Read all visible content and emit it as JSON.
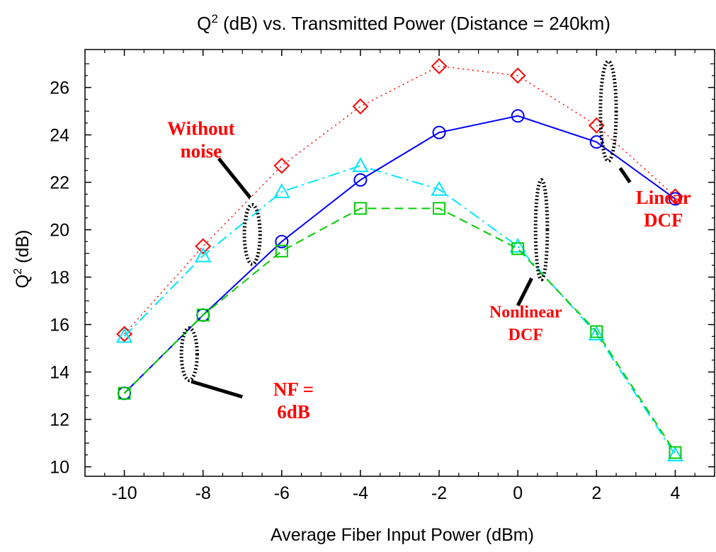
{
  "chart_data": {
    "type": "line",
    "title": {
      "prefix": "Q",
      "sup": "2",
      "rest": " (dB) vs. Transmitted Power (Distance = 240km)"
    },
    "xlabel": "Average Fiber Input Power (dBm)",
    "ylabel": {
      "prefix": "Q",
      "sup": "2",
      "rest": " (dB)"
    },
    "xlim": [
      -11,
      5
    ],
    "ylim": [
      9.6,
      27.6
    ],
    "xticks": [
      -10,
      -8,
      -6,
      -4,
      -2,
      0,
      2,
      4
    ],
    "yticks": [
      10,
      12,
      14,
      16,
      18,
      20,
      22,
      24,
      26
    ],
    "grid": false,
    "series": [
      {
        "key": "linear_dcf_without_noise",
        "color": "#ff0000",
        "marker": "diamond",
        "line": "dotted",
        "x": [
          -10,
          -8,
          -6,
          -4,
          -2,
          0,
          2,
          4
        ],
        "y": [
          15.6,
          19.3,
          22.7,
          25.2,
          26.9,
          26.5,
          24.4,
          21.4
        ]
      },
      {
        "key": "nonlinear_dcf_without_noise",
        "color": "#00e5ff",
        "marker": "triangle",
        "line": "dashdot",
        "x": [
          -10,
          -8,
          -6,
          -4,
          -2,
          0,
          2,
          4
        ],
        "y": [
          15.5,
          18.9,
          21.6,
          22.7,
          21.7,
          19.3,
          15.6,
          10.5
        ]
      },
      {
        "key": "linear_dcf_nf_6db",
        "color": "#0000ff",
        "marker": "circle",
        "line": "solid",
        "x": [
          -10,
          -8,
          -6,
          -4,
          -2,
          0,
          2,
          4
        ],
        "y": [
          13.1,
          16.4,
          19.5,
          22.1,
          24.1,
          24.8,
          23.7,
          21.3
        ]
      },
      {
        "key": "nonlinear_dcf_nf_6db",
        "color": "#00cc00",
        "marker": "square",
        "line": "dashed",
        "x": [
          -10,
          -8,
          -6,
          -4,
          -2,
          0,
          2,
          4
        ],
        "y": [
          13.1,
          16.4,
          19.1,
          20.9,
          20.9,
          19.2,
          15.7,
          10.6
        ]
      }
    ],
    "annotations": [
      {
        "key": "without_noise",
        "lines": [
          "Without",
          "noise"
        ],
        "x": -8.05,
        "y": 24.0,
        "color": "#ff0000"
      },
      {
        "key": "nf_6db",
        "lines": [
          "NF =",
          "6dB"
        ],
        "x": -5.7,
        "y": 13.0,
        "color": "#ff0000"
      },
      {
        "key": "nonlinear_dcf",
        "lines": [
          "Nonlinear",
          "DCF"
        ],
        "x": 0.2,
        "y": 16.3,
        "color": "#ff0000"
      },
      {
        "key": "linear_dcf",
        "lines": [
          "Linear",
          "DCF"
        ],
        "x": 3.7,
        "y": 21.1,
        "color": "#ff0000"
      }
    ],
    "group_markers": [
      {
        "key": "without_noise",
        "cx": -6.75,
        "cy": 19.8,
        "rx": 0.2,
        "ry": 1.25,
        "from": [
          -6.8,
          21.35
        ],
        "to": [
          -7.6,
          23.0
        ]
      },
      {
        "key": "nf_6db",
        "cx": -8.35,
        "cy": 14.75,
        "rx": 0.2,
        "ry": 1.1,
        "from": [
          -8.3,
          13.6
        ],
        "to": [
          -7.0,
          12.95
        ]
      },
      {
        "key": "nonlinear_dcf",
        "cx": 0.6,
        "cy": 20.0,
        "rx": 0.15,
        "ry": 2.1,
        "from": [
          0.35,
          17.95
        ],
        "to": [
          0.0,
          16.8
        ]
      },
      {
        "key": "linear_dcf",
        "cx": 2.3,
        "cy": 25.0,
        "rx": 0.2,
        "ry": 2.1,
        "from": [
          2.6,
          22.6
        ],
        "to": [
          2.85,
          22.0
        ]
      }
    ]
  }
}
